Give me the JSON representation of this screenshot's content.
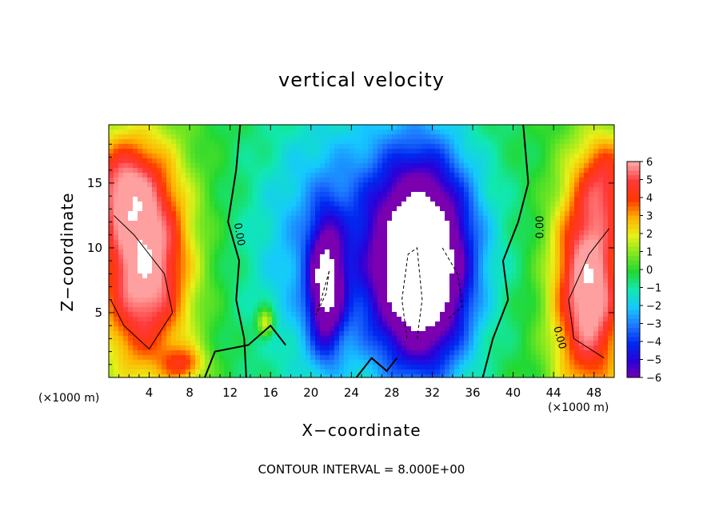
{
  "chart_data": {
    "type": "heatmap",
    "title": "vertical velocity",
    "xlabel": "X−coordinate",
    "ylabel": "Z−coordinate",
    "x_unit": "(×1000 m)",
    "xlim": [
      0,
      50
    ],
    "ylim": [
      0,
      19.5
    ],
    "x_ticks": [
      "4",
      "8",
      "12",
      "16",
      "20",
      "24",
      "28",
      "32",
      "36",
      "40",
      "44",
      "48"
    ],
    "y_ticks": [
      "5",
      "10",
      "15"
    ],
    "colorbar": {
      "range": [
        -6,
        6
      ],
      "labels": [
        "6",
        "5",
        "4",
        "3",
        "2",
        "1",
        "0",
        "−1",
        "−2",
        "−3",
        "−4",
        "−5",
        "−6"
      ]
    },
    "contour_labels": [
      "0.00",
      "0.00",
      "0.00"
    ],
    "footer": "CONTOUR INTERVAL = 8.000E+00",
    "features": [
      {
        "kind": "updraft",
        "x": 3.5,
        "z": 9,
        "sx": 3.2,
        "sz": 6,
        "w": 7
      },
      {
        "kind": "updraft",
        "x": 0.8,
        "z": 15,
        "sx": 2.5,
        "sz": 2.5,
        "w": 3
      },
      {
        "kind": "updraft",
        "x": 47.5,
        "z": 7,
        "sx": 2.5,
        "sz": 6,
        "w": 7
      },
      {
        "kind": "updraft",
        "x": 49.5,
        "z": 15.5,
        "sx": 2,
        "sz": 2.5,
        "w": 3
      },
      {
        "kind": "updraft",
        "x": 7.5,
        "z": 1,
        "sx": 1.5,
        "sz": 1,
        "w": 3
      },
      {
        "kind": "updraft",
        "x": 15.5,
        "z": 4.2,
        "sx": 0.6,
        "sz": 0.8,
        "w": 3
      },
      {
        "kind": "downdraft",
        "x": 31,
        "z": 8.5,
        "sx": 3.2,
        "sz": 5.5,
        "w": -9
      },
      {
        "kind": "downdraft",
        "x": 21.5,
        "z": 7,
        "sx": 1.2,
        "sz": 3.5,
        "w": -6
      },
      {
        "kind": "downdraft",
        "x": 28,
        "z": 11,
        "sx": 7,
        "sz": 7,
        "w": -2.5
      },
      {
        "kind": "downdraft",
        "x": 20,
        "z": 9,
        "sx": 5,
        "sz": 8,
        "w": -1.5
      }
    ]
  }
}
